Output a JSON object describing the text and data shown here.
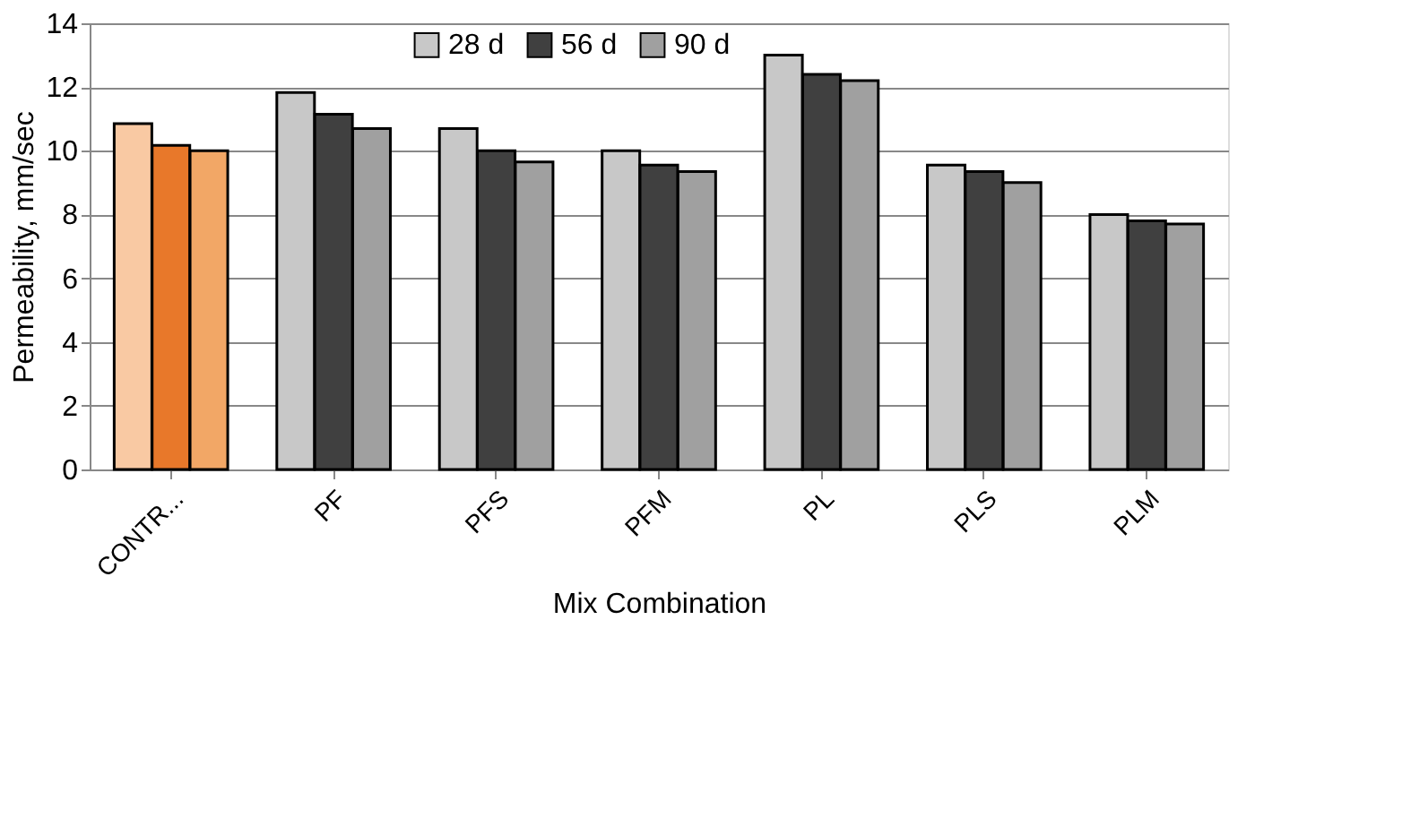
{
  "chart_data": {
    "type": "bar",
    "xlabel": "Mix Combination",
    "ylabel": "Permeability, mm/sec",
    "categories": [
      "CONTR...",
      "PF",
      "PFS",
      "PFM",
      "PL",
      "PLS",
      "PLM"
    ],
    "series": [
      {
        "name": "28 d",
        "color": "#c8c8c8",
        "colors": [
          "#f9c9a3",
          "#c8c8c8",
          "#c8c8c8",
          "#c8c8c8",
          "#c8c8c8",
          "#c8c8c8",
          "#c8c8c8"
        ],
        "values": [
          10.85,
          11.83,
          10.7,
          10.0,
          13.0,
          9.55,
          8.0
        ]
      },
      {
        "name": "56 d",
        "color": "#404040",
        "colors": [
          "#e8782a",
          "#404040",
          "#404040",
          "#404040",
          "#404040",
          "#404040",
          "#404040"
        ],
        "values": [
          10.17,
          11.15,
          10.0,
          9.55,
          12.4,
          9.35,
          7.8
        ]
      },
      {
        "name": "90 d",
        "color": "#a0a0a0",
        "colors": [
          "#f2a766",
          "#a0a0a0",
          "#a0a0a0",
          "#a0a0a0",
          "#a0a0a0",
          "#a0a0a0",
          "#a0a0a0"
        ],
        "values": [
          10.0,
          10.7,
          9.65,
          9.35,
          12.2,
          9.0,
          7.7
        ]
      }
    ],
    "ylim": [
      0,
      14
    ],
    "yticks": [
      0,
      2,
      4,
      6,
      8,
      10,
      12,
      14
    ],
    "grid": "y",
    "legend": "top"
  }
}
